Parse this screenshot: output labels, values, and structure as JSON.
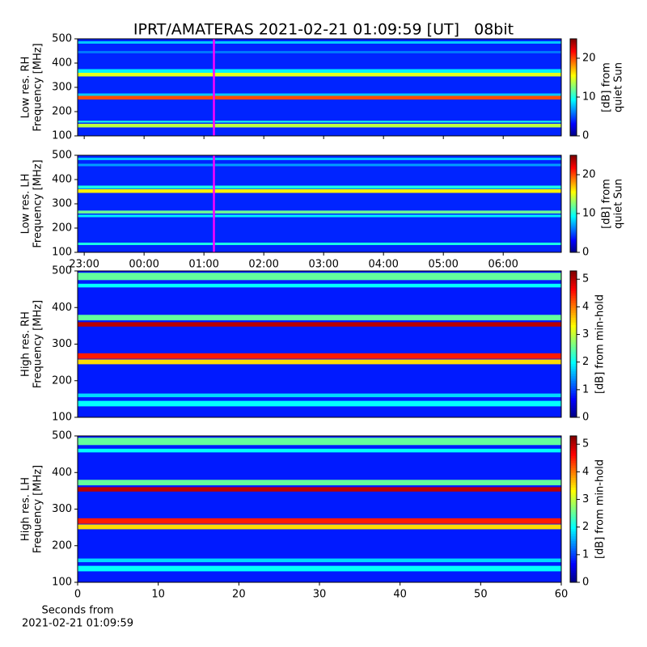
{
  "title": "IPRT/AMATERAS 2021-02-21 01:09:59 [UT]   08bit",
  "chart_data": [
    {
      "type": "heatmap",
      "ylabel": [
        "Low res. RH",
        "Frequency [MHz]"
      ],
      "ylim": [
        100,
        500
      ],
      "yticks": [
        100,
        200,
        300,
        400,
        500
      ],
      "xlim": [
        -1.11,
        6.97
      ],
      "marker": 1.1667,
      "marker_color": "#ff00ff",
      "clim": [
        0,
        25
      ],
      "cticks": [
        0,
        10,
        20
      ],
      "clabel": [
        "[dB] from",
        "quiet Sun"
      ],
      "background": 4,
      "bands": {
        "freq": [
          [
            135,
            150
          ],
          [
            155,
            162
          ],
          [
            250,
            265
          ],
          [
            265,
            275
          ],
          [
            345,
            360
          ],
          [
            360,
            375
          ],
          [
            440,
            450
          ],
          [
            480,
            490
          ]
        ],
        "values": [
          14,
          10,
          20,
          8,
          15,
          9,
          6,
          8
        ]
      }
    },
    {
      "type": "heatmap",
      "ylabel": [
        "Low res. LH",
        "Frequency [MHz]"
      ],
      "ylim": [
        100,
        500
      ],
      "yticks": [
        100,
        200,
        300,
        400,
        500
      ],
      "xlim": [
        -1.11,
        6.97
      ],
      "marker": 1.1667,
      "marker_color": "#ff00ff",
      "xticks": [
        {
          "value": -1,
          "label": "23:00"
        },
        {
          "value": 0,
          "label": "00:00"
        },
        {
          "value": 1,
          "label": "01:00"
        },
        {
          "value": 2,
          "label": "02:00"
        },
        {
          "value": 3,
          "label": "03:00"
        },
        {
          "value": 4,
          "label": "04:00"
        },
        {
          "value": 5,
          "label": "05:00"
        },
        {
          "value": 6,
          "label": "06:00"
        }
      ],
      "clim": [
        0,
        25
      ],
      "cticks": [
        0,
        10,
        20
      ],
      "clabel": [
        "[dB] from",
        "quiet Sun"
      ],
      "background": 4,
      "bands": {
        "freq": [
          [
            130,
            140
          ],
          [
            245,
            255
          ],
          [
            260,
            272
          ],
          [
            345,
            360
          ],
          [
            362,
            375
          ],
          [
            455,
            465
          ],
          [
            480,
            490
          ]
        ],
        "values": [
          10,
          9,
          12,
          16,
          10,
          7,
          8
        ]
      }
    },
    {
      "type": "heatmap",
      "ylabel": [
        "High res. RH",
        "Frequency [MHz]"
      ],
      "ylim": [
        100,
        500
      ],
      "yticks": [
        100,
        200,
        300,
        400,
        500
      ],
      "clim": [
        0,
        5.3
      ],
      "cticks": [
        0,
        1,
        2,
        3,
        4,
        5
      ],
      "clabel": [
        "[dB] from min-hold"
      ],
      "background": 0.8,
      "bands": {
        "freq": [
          [
            130,
            145
          ],
          [
            155,
            165
          ],
          [
            245,
            258
          ],
          [
            260,
            275
          ],
          [
            348,
            360
          ],
          [
            365,
            380
          ],
          [
            455,
            465
          ],
          [
            475,
            495
          ]
        ],
        "values": [
          2,
          1.8,
          3.5,
          4.5,
          5,
          2.5,
          2,
          2.5
        ]
      }
    },
    {
      "type": "heatmap",
      "ylabel": [
        "High res. LH",
        "Frequency [MHz]"
      ],
      "ylim": [
        100,
        500
      ],
      "yticks": [
        100,
        200,
        300,
        400,
        500
      ],
      "xlim": [
        0,
        60
      ],
      "xticks": [
        0,
        10,
        20,
        30,
        40,
        50,
        60
      ],
      "xlabel": [
        "Seconds from",
        "2021-02-21 01:09:59"
      ],
      "clim": [
        0,
        5.3
      ],
      "cticks": [
        0,
        1,
        2,
        3,
        4,
        5
      ],
      "clabel": [
        "[dB] from min-hold"
      ],
      "background": 0.8,
      "bands": {
        "freq": [
          [
            130,
            145
          ],
          [
            155,
            165
          ],
          [
            245,
            258
          ],
          [
            260,
            275
          ],
          [
            348,
            360
          ],
          [
            365,
            380
          ],
          [
            455,
            465
          ],
          [
            475,
            495
          ]
        ],
        "values": [
          2,
          1.8,
          3.5,
          4.5,
          5,
          2.5,
          2,
          2.5
        ]
      }
    }
  ]
}
